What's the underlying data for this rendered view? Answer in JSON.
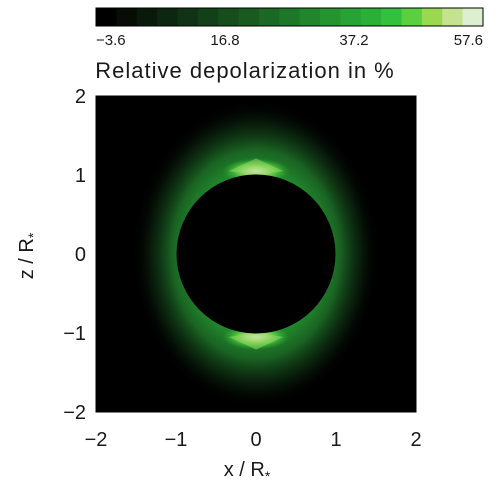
{
  "chart_data": {
    "type": "heatmap",
    "title": "Relative depolarization in %",
    "xlabel": "x / R",
    "ylabel": "z / R",
    "axis_subscript": "*",
    "xlim": [
      -2,
      2
    ],
    "ylim": [
      -2,
      2
    ],
    "x_ticks": [
      "−2",
      "−1",
      "0",
      "1",
      "2"
    ],
    "y_ticks": [
      "−2",
      "−1",
      "0",
      "1",
      "2"
    ],
    "colorbar": {
      "tick_labels": [
        "−3.6",
        "16.8",
        "37.2",
        "57.6"
      ],
      "tick_values": [
        -3.6,
        16.8,
        37.2,
        57.6
      ],
      "range": [
        -3.6,
        57.6
      ],
      "colors": [
        "#000000",
        "#050d05",
        "#0a1a0a",
        "#0d260f",
        "#0f3314",
        "#124018",
        "#154d1c",
        "#185a20",
        "#1b6824",
        "#1e7628",
        "#21852c",
        "#249430",
        "#27a234",
        "#2ab038",
        "#33c03c",
        "#5ad040",
        "#9ad850",
        "#c4e290",
        "#dcefd0"
      ]
    },
    "occulting_disk_radius": 1.0,
    "features": [
      {
        "x": 0,
        "z": 1.05,
        "value": 57.6
      },
      {
        "x": 0,
        "z": -1.05,
        "value": 57.6
      }
    ],
    "grid": false
  }
}
